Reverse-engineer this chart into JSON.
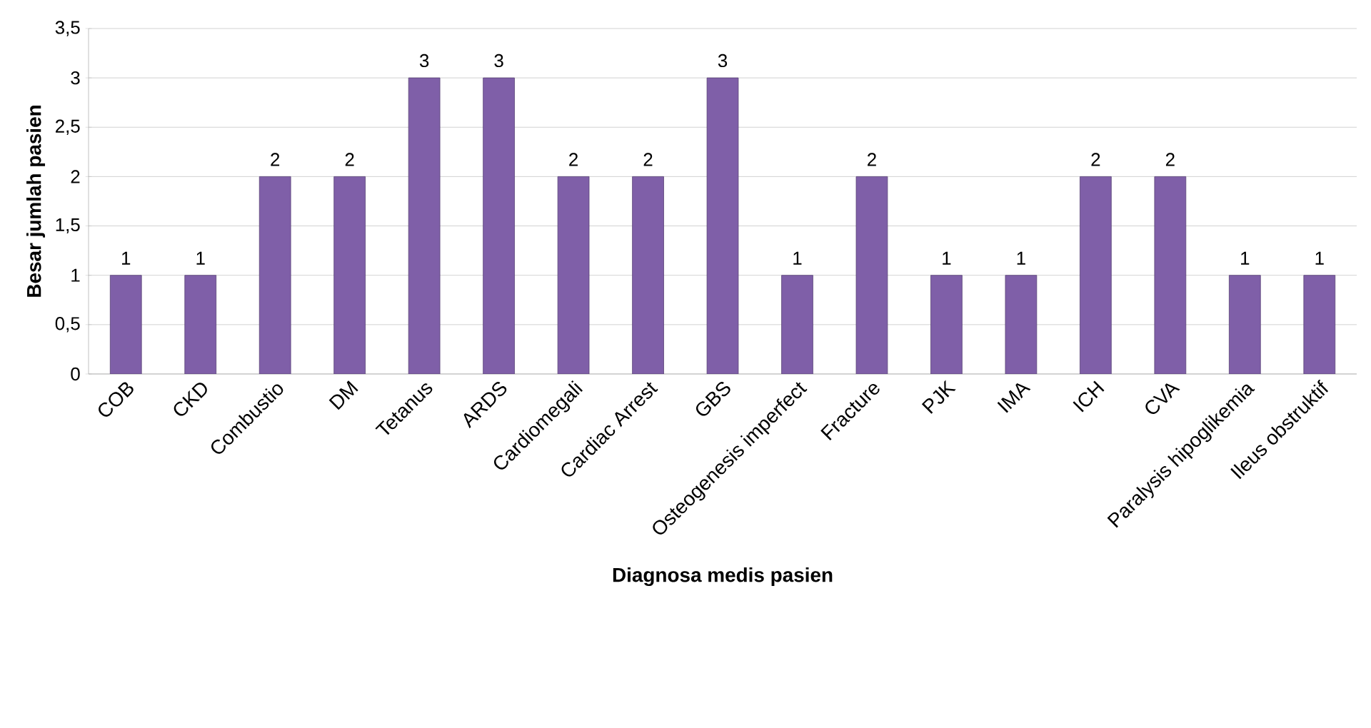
{
  "chart_data": {
    "type": "bar",
    "xlabel": "Diagnosa medis pasien",
    "ylabel": "Besar jumlah pasien",
    "categories": [
      "COB",
      "CKD",
      "Combustio",
      "DM",
      "Tetanus",
      "ARDS",
      "Cardiomegali",
      "Cardiac Arrest",
      "GBS",
      "Osteogenesis imperfect",
      "Fracture",
      "PJK",
      "IMA",
      "ICH",
      "CVA",
      "Paralysis hipoglikemia",
      "Ileus obstruktif"
    ],
    "values": [
      1,
      1,
      2,
      2,
      3,
      3,
      2,
      2,
      3,
      1,
      2,
      1,
      1,
      2,
      2,
      1,
      1
    ],
    "color": "#7f5fa8",
    "ylim": [
      0,
      3.5
    ],
    "yticks": [
      {
        "value": 0,
        "label": "0"
      },
      {
        "value": 0.5,
        "label": "0,5"
      },
      {
        "value": 1,
        "label": "1"
      },
      {
        "value": 1.5,
        "label": "1,5"
      },
      {
        "value": 2,
        "label": "2"
      },
      {
        "value": 2.5,
        "label": "2,5"
      },
      {
        "value": 3,
        "label": "3"
      },
      {
        "value": 3.5,
        "label": "3,5"
      }
    ],
    "grid": "y",
    "data_labels": true
  }
}
